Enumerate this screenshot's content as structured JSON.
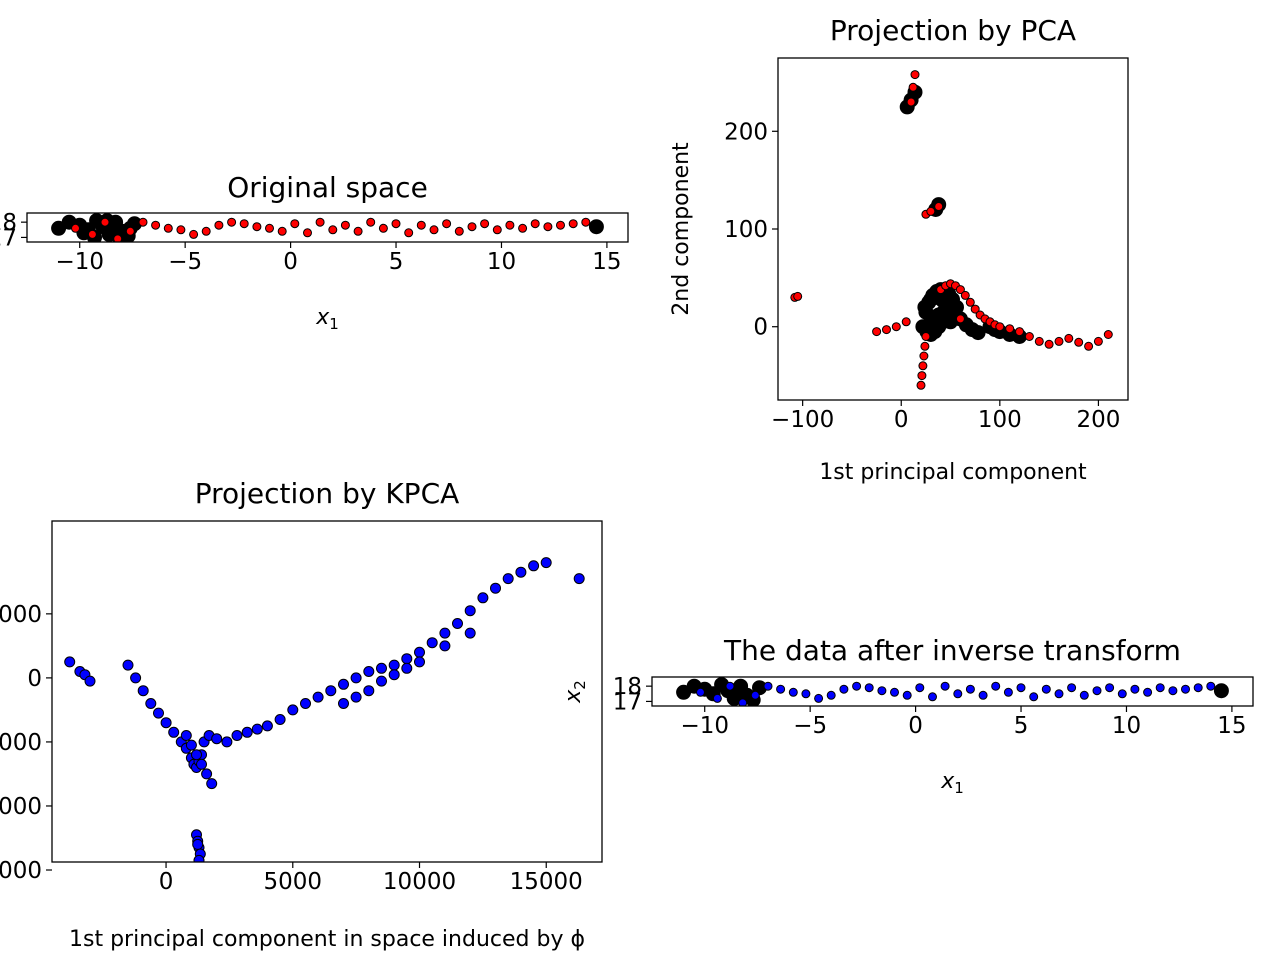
{
  "chart_data": [
    {
      "type": "scatter",
      "title": "Original space",
      "xlabel": "x",
      "xlabel_sub": "1",
      "ylabel": "",
      "xlim": [
        -12.5,
        16
      ],
      "ylim": [
        16.7,
        18.6
      ],
      "xticks": [
        -10,
        -5,
        0,
        5,
        10,
        15
      ],
      "xtick_labels": [
        "−10",
        "−5",
        "0",
        "5",
        "10",
        "15"
      ],
      "yticks": [
        17,
        18
      ],
      "ytick_labels": [
        "17",
        "18"
      ],
      "series": [
        {
          "color": "#000000",
          "marker_size": "large",
          "x": [
            -11,
            -10.5,
            -10,
            -9.6,
            -9.2,
            -8.9,
            -8.6,
            -8.3,
            -8,
            -7.7,
            -7.4,
            -9.8,
            -9.3,
            -8.7,
            -8.1,
            -7.6
          ],
          "y": [
            17.6,
            18.0,
            17.8,
            17.5,
            18.1,
            17.7,
            17.2,
            18.0,
            17.4,
            17.1,
            17.9,
            17.3,
            17.0,
            18.1,
            16.9,
            17.6
          ]
        },
        {
          "color": "#ff0000",
          "marker_size": "small",
          "x": [
            -10.2,
            -9.4,
            -8.8,
            -8.2,
            -7.6,
            -7,
            -6.4,
            -5.8,
            -5.2,
            -4.6,
            -4,
            -3.4,
            -2.8,
            -2.2,
            -1.6,
            -1,
            -0.4,
            0.2,
            0.8,
            1.4,
            2,
            2.6,
            3.2,
            3.8,
            4.4,
            5,
            5.6,
            6.2,
            6.8,
            7.4,
            8,
            8.6,
            9.2,
            9.8,
            10.4,
            11,
            11.6,
            12.2,
            12.8,
            13.4,
            14
          ],
          "y": [
            17.6,
            17.2,
            18.0,
            16.9,
            17.4,
            18.0,
            17.8,
            17.6,
            17.5,
            17.2,
            17.4,
            17.8,
            18.0,
            17.9,
            17.7,
            17.6,
            17.4,
            17.9,
            17.3,
            18.0,
            17.5,
            17.8,
            17.4,
            18.0,
            17.6,
            17.9,
            17.3,
            17.8,
            17.5,
            17.9,
            17.4,
            17.7,
            17.9,
            17.5,
            17.8,
            17.6,
            17.9,
            17.7,
            17.8,
            17.9,
            18.0
          ]
        },
        {
          "color": "#000000",
          "marker_size": "large",
          "x": [
            14.5
          ],
          "y": [
            17.7
          ]
        }
      ]
    },
    {
      "type": "scatter",
      "title": "Projection by PCA",
      "xlabel": "1st principal component",
      "ylabel": "2nd component",
      "xlim": [
        -125,
        230
      ],
      "ylim": [
        -75,
        275
      ],
      "xticks": [
        -100,
        0,
        100,
        200
      ],
      "xtick_labels": [
        "−100",
        "0",
        "100",
        "200"
      ],
      "yticks": [
        0,
        100,
        200
      ],
      "ytick_labels": [
        "0",
        "100",
        "200"
      ],
      "series": [
        {
          "color": "#000000",
          "marker_size": "large",
          "x": [
            25,
            28,
            32,
            36,
            40,
            44,
            48,
            52,
            56,
            30,
            34,
            38,
            42,
            46,
            50,
            22,
            26,
            30,
            34,
            38,
            42,
            24,
            30,
            36,
            42,
            48,
            54,
            60,
            66,
            72,
            78,
            6,
            10,
            14,
            35,
            38,
            90,
            95,
            100,
            110,
            120
          ],
          "y": [
            15,
            25,
            32,
            36,
            38,
            37,
            34,
            28,
            20,
            5,
            10,
            12,
            14,
            10,
            5,
            0,
            -5,
            -8,
            -5,
            0,
            5,
            20,
            28,
            30,
            27,
            22,
            15,
            8,
            2,
            -3,
            -6,
            225,
            232,
            240,
            120,
            125,
            0,
            -3,
            -5,
            -8,
            -10
          ]
        },
        {
          "color": "#ff0000",
          "marker_size": "small",
          "x": [
            10,
            12,
            14,
            25,
            30,
            38,
            -108,
            -105,
            -25,
            -15,
            -5,
            5,
            40,
            45,
            50,
            55,
            60,
            65,
            70,
            75,
            80,
            85,
            90,
            95,
            100,
            110,
            120,
            130,
            140,
            150,
            160,
            170,
            180,
            190,
            200,
            210,
            20,
            21,
            22,
            23,
            24,
            25,
            60
          ],
          "y": [
            230,
            245,
            258,
            115,
            118,
            123,
            30,
            31,
            -5,
            -3,
            0,
            5,
            38,
            42,
            44,
            42,
            38,
            32,
            25,
            18,
            12,
            8,
            5,
            2,
            0,
            -2,
            -5,
            -10,
            -15,
            -18,
            -15,
            -12,
            -16,
            -20,
            -15,
            -8,
            -60,
            -50,
            -40,
            -30,
            -20,
            -10,
            8
          ]
        }
      ]
    },
    {
      "type": "scatter",
      "title": "Projection by KPCA",
      "xlabel": "1st principal component in space induced by ϕ",
      "ylabel": "",
      "xlim": [
        -4500,
        17200
      ],
      "ylim": [
        -5750,
        4900
      ],
      "xticks": [
        0,
        5000,
        10000,
        15000
      ],
      "xtick_labels": [
        "0",
        "5000",
        "10000",
        "15000"
      ],
      "yticks": [
        2000,
        0,
        -2000,
        -4000,
        -6000
      ],
      "ytick_labels": [
        "000",
        "0",
        "000",
        "000",
        "000"
      ],
      "series": [
        {
          "color": "#0000ff",
          "marker_size": "medium",
          "x": [
            -3800,
            -3400,
            -3200,
            -3000,
            -1500,
            -1200,
            -900,
            -600,
            -300,
            0,
            300,
            600,
            800,
            1000,
            1100,
            1200,
            1300,
            1400,
            1500,
            1700,
            2000,
            2400,
            2800,
            3200,
            3600,
            4000,
            4500,
            5000,
            5500,
            6000,
            6500,
            7000,
            7500,
            8000,
            8500,
            9000,
            9500,
            10000,
            10500,
            11000,
            11500,
            12000,
            12500,
            13000,
            13500,
            14000,
            14500,
            15000,
            16300,
            1200,
            1250,
            1300,
            1350,
            1300,
            1250,
            800,
            1000,
            1200,
            1400,
            1600,
            1800,
            7000,
            7500,
            8000,
            8500,
            9000,
            9500,
            10000,
            11000,
            12000
          ],
          "y": [
            500,
            200,
            100,
            -100,
            400,
            0,
            -400,
            -800,
            -1100,
            -1400,
            -1700,
            -2000,
            -2200,
            -2500,
            -2700,
            -2800,
            -2600,
            -2400,
            -2000,
            -1800,
            -1900,
            -2000,
            -1800,
            -1700,
            -1600,
            -1500,
            -1300,
            -1000,
            -800,
            -600,
            -400,
            -200,
            0,
            200,
            300,
            400,
            600,
            800,
            1100,
            1400,
            1700,
            2100,
            2500,
            2800,
            3100,
            3300,
            3500,
            3600,
            3100,
            -4900,
            -5100,
            -5300,
            -5500,
            -5700,
            -5200,
            -1800,
            -2100,
            -2400,
            -2700,
            -3000,
            -3300,
            -800,
            -600,
            -400,
            -100,
            100,
            300,
            500,
            1000,
            1400
          ]
        }
      ]
    },
    {
      "type": "scatter",
      "title": "The data after inverse transform",
      "xlabel": "x",
      "xlabel_sub": "1",
      "ylabel": "x",
      "ylabel_sub": "2",
      "xlim": [
        -12.5,
        16
      ],
      "ylim": [
        16.7,
        18.6
      ],
      "xticks": [
        -10,
        -5,
        0,
        5,
        10,
        15
      ],
      "xtick_labels": [
        "−10",
        "−5",
        "0",
        "5",
        "10",
        "15"
      ],
      "yticks": [
        17,
        18
      ],
      "ytick_labels": [
        "17",
        "18"
      ],
      "series": [
        {
          "color": "#000000",
          "marker_size": "large",
          "x": [
            -11,
            -10.5,
            -10,
            -9.6,
            -9.2,
            -8.9,
            -8.6,
            -8.3,
            -8,
            -7.7,
            -7.4,
            14.5
          ],
          "y": [
            17.6,
            18.0,
            17.8,
            17.5,
            18.1,
            17.7,
            17.2,
            18.0,
            17.4,
            17.1,
            17.9,
            17.7
          ]
        },
        {
          "color": "#0000ff",
          "marker_size": "small",
          "x": [
            -10.2,
            -9.4,
            -8.8,
            -8.2,
            -7.6,
            -7,
            -6.4,
            -5.8,
            -5.2,
            -4.6,
            -4,
            -3.4,
            -2.8,
            -2.2,
            -1.6,
            -1,
            -0.4,
            0.2,
            0.8,
            1.4,
            2,
            2.6,
            3.2,
            3.8,
            4.4,
            5,
            5.6,
            6.2,
            6.8,
            7.4,
            8,
            8.6,
            9.2,
            9.8,
            10.4,
            11,
            11.6,
            12.2,
            12.8,
            13.4,
            14
          ],
          "y": [
            17.6,
            17.2,
            18.0,
            16.9,
            17.4,
            18.0,
            17.8,
            17.6,
            17.5,
            17.2,
            17.4,
            17.8,
            18.0,
            17.9,
            17.7,
            17.6,
            17.4,
            17.9,
            17.3,
            18.0,
            17.5,
            17.8,
            17.4,
            18.0,
            17.6,
            17.9,
            17.3,
            17.8,
            17.5,
            17.9,
            17.4,
            17.7,
            17.9,
            17.5,
            17.8,
            17.6,
            17.9,
            17.7,
            17.8,
            17.9,
            18.0
          ]
        }
      ]
    }
  ]
}
